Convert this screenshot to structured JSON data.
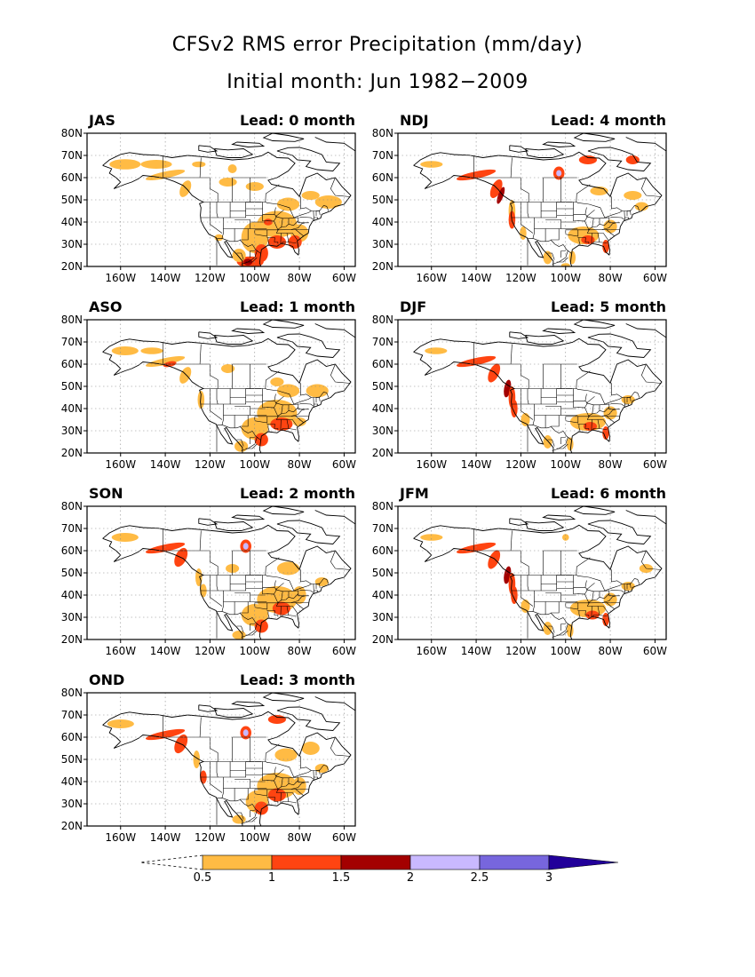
{
  "title": "CFSv2 RMS error Precipitation (mm/day)",
  "subtitle": "Initial month: Jun 1982−2009",
  "panels": [
    {
      "season": "JAS",
      "lead": "Lead: 0 month"
    },
    {
      "season": "NDJ",
      "lead": "Lead: 4 month"
    },
    {
      "season": "ASO",
      "lead": "Lead: 1 month"
    },
    {
      "season": "DJF",
      "lead": "Lead: 5 month"
    },
    {
      "season": "SON",
      "lead": "Lead: 2 month"
    },
    {
      "season": "JFM",
      "lead": "Lead: 6 month"
    },
    {
      "season": "OND",
      "lead": "Lead: 3 month"
    }
  ],
  "lat_ticks": [
    "20N",
    "30N",
    "40N",
    "50N",
    "60N",
    "70N",
    "80N"
  ],
  "lon_ticks": [
    "160W",
    "140W",
    "120W",
    "100W",
    "80W",
    "60W"
  ],
  "colorbar": {
    "labels": [
      "0.5",
      "1",
      "1.5",
      "2",
      "2.5",
      "3"
    ],
    "colors": [
      "#ffbb44",
      "#ff4411",
      "#a30000",
      "#c9b9ff",
      "#7766dd",
      "#22009a"
    ]
  }
}
